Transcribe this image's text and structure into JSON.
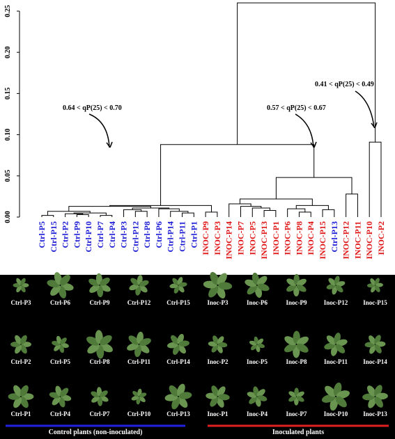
{
  "chart_data": {
    "type": "dendrogram",
    "leaves": [
      {
        "name": "Ctrl-P5",
        "color": "#1a1ad6"
      },
      {
        "name": "Ctrl-P15",
        "color": "#1a1ad6"
      },
      {
        "name": "Ctrl-P2",
        "color": "#1a1ad6"
      },
      {
        "name": "Ctrl-P9",
        "color": "#1a1ad6"
      },
      {
        "name": "Ctrl-P10",
        "color": "#1a1ad6"
      },
      {
        "name": "Ctrl-P7",
        "color": "#1a1ad6"
      },
      {
        "name": "Ctrl-P4",
        "color": "#1a1ad6"
      },
      {
        "name": "Ctrl-P3",
        "color": "#1a1ad6"
      },
      {
        "name": "Ctrl-P12",
        "color": "#1a1ad6"
      },
      {
        "name": "Ctrl-P8",
        "color": "#1a1ad6"
      },
      {
        "name": "Ctrl-P6",
        "color": "#1a1ad6"
      },
      {
        "name": "Ctrl-P14",
        "color": "#1a1ad6"
      },
      {
        "name": "Ctrl-P11",
        "color": "#1a1ad6"
      },
      {
        "name": "Ctrl-P1",
        "color": "#1a1ad6"
      },
      {
        "name": "INOC-P9",
        "color": "#e01414"
      },
      {
        "name": "INOC-P3",
        "color": "#e01414"
      },
      {
        "name": "INOC-P14",
        "color": "#e01414"
      },
      {
        "name": "INOC-P7",
        "color": "#e01414"
      },
      {
        "name": "INOC-P5",
        "color": "#e01414"
      },
      {
        "name": "INOC-P13",
        "color": "#e01414"
      },
      {
        "name": "INOC-P1",
        "color": "#e01414"
      },
      {
        "name": "INOC-P6",
        "color": "#e01414"
      },
      {
        "name": "INOC-P8",
        "color": "#e01414"
      },
      {
        "name": "INOC-P4",
        "color": "#e01414"
      },
      {
        "name": "INOC-P15",
        "color": "#e01414"
      },
      {
        "name": "Ctrl-P13",
        "color": "#1a1ad6"
      },
      {
        "name": "INOC-P12",
        "color": "#e01414"
      },
      {
        "name": "INOC-P11",
        "color": "#e01414"
      },
      {
        "name": "INOC-P10",
        "color": "#e01414"
      },
      {
        "name": "INOC-P2",
        "color": "#e01414"
      }
    ],
    "merges": [
      [
        0,
        1,
        0.002
      ],
      [
        3,
        4,
        0.003
      ],
      [
        2,
        31,
        0.004
      ],
      [
        5,
        6,
        0.002
      ],
      [
        32,
        33,
        0.005
      ],
      [
        30,
        34,
        0.007
      ],
      [
        8,
        9,
        0.007
      ],
      [
        7,
        36,
        0.009
      ],
      [
        12,
        13,
        0.005
      ],
      [
        11,
        38,
        0.007
      ],
      [
        10,
        39,
        0.01
      ],
      [
        37,
        40,
        0.011
      ],
      [
        35,
        41,
        0.013
      ],
      [
        14,
        15,
        0.006
      ],
      [
        42,
        43,
        0.014
      ],
      [
        19,
        20,
        0.008
      ],
      [
        18,
        45,
        0.011
      ],
      [
        17,
        46,
        0.013
      ],
      [
        16,
        47,
        0.016
      ],
      [
        22,
        23,
        0.006
      ],
      [
        21,
        49,
        0.01
      ],
      [
        24,
        25,
        0.009
      ],
      [
        50,
        51,
        0.014
      ],
      [
        48,
        52,
        0.022
      ],
      [
        26,
        27,
        0.028
      ],
      [
        53,
        54,
        0.048
      ],
      [
        44,
        55,
        0.088
      ],
      [
        28,
        29,
        0.091
      ],
      [
        56,
        57,
        0.26
      ]
    ],
    "ylim": [
      0,
      0.25
    ],
    "yticks": [
      {
        "value": 0,
        "label": "0.00"
      },
      0.05,
      {
        "value": 0.1,
        "label": "0.10"
      },
      0.15,
      {
        "value": 0.2,
        "label": "0.20"
      },
      0.25
    ],
    "annotations": [
      "0.64 < qP(25) < 0.70",
      "0.57 < qP(25) < 0.67",
      "0.41 < qP(25) < 0.49"
    ]
  },
  "photo_panel": {
    "rows": [
      [
        "Ctrl-P3",
        "Ctrl-P6",
        "Ctrl-P9",
        "Ctrl-P12",
        "Ctrl-P15",
        "Inoc-P3",
        "Inoc-P6",
        "Inoc-P9",
        "Inoc-P12",
        "Inoc-P15"
      ],
      [
        "Ctrl-P2",
        "Ctrl-P5",
        "Ctrl-P8",
        "Ctrl-P11",
        "Ctrl-P14",
        "Inoc-P2",
        "Inoc-P5",
        "Inoc-P8",
        "Inoc-P11",
        "Inoc-P14"
      ],
      [
        "Ctrl-P1",
        "Ctrl-P4",
        "Ctrl-P7",
        "Ctrl-P10",
        "Ctrl-P13",
        "Inoc-P1",
        "Inoc-P4",
        "Inoc-P7",
        "Inoc-P10",
        "Inoc-P13"
      ]
    ],
    "groups": [
      "Control plants (non-inoculated)",
      "Inoculated plants"
    ]
  }
}
